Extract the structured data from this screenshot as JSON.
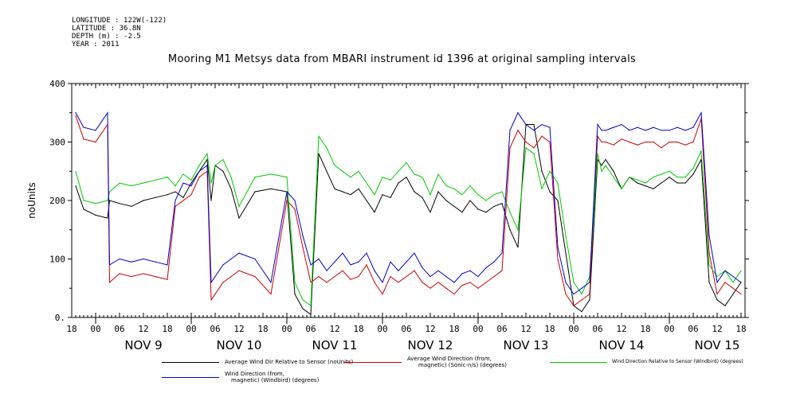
{
  "meta": {
    "longitude": "LONGITUDE : 122W(-122)",
    "latitude": "LATITUDE : 36.8N",
    "depth": "DEPTH (m) : -2.5",
    "year": "YEAR : 2011"
  },
  "chart_data": {
    "type": "line",
    "title": "Mooring M1 Metsys data from MBARI instrument id 1396 at original sampling intervals",
    "ylabel": "noUnits",
    "xlabel": "",
    "ylim": [
      0,
      400
    ],
    "yticks": [
      0,
      100,
      200,
      300,
      400
    ],
    "ytick_labels": [
      "0.",
      "100",
      "200",
      "300",
      "400"
    ],
    "xlim_hours": [
      -6,
      163
    ],
    "hour_ticks": [
      "00",
      "06",
      "12",
      "18"
    ],
    "day_labels": [
      "NOV  9",
      "NOV 10",
      "NOV 11",
      "NOV 12",
      "NOV 13",
      "NOV 14",
      "NOV 15"
    ],
    "grid": false,
    "series": [
      {
        "name": "Average Wind Dir Relative to Sensor (noUnits)",
        "color": "#000000",
        "x": [
          -5,
          -3,
          0,
          3,
          3.5,
          6,
          9,
          12,
          15,
          18,
          20,
          22,
          24,
          26,
          28,
          29,
          30,
          32,
          34,
          36,
          40,
          44,
          48,
          50,
          52,
          54,
          56,
          58,
          60,
          62,
          64,
          66,
          68,
          70,
          72,
          74,
          76,
          78,
          80,
          82,
          84,
          86,
          88,
          90,
          92,
          94,
          96,
          98,
          100,
          102,
          104,
          106,
          108,
          110,
          112,
          114,
          116,
          118,
          120,
          122,
          124,
          126,
          127,
          128,
          130,
          132,
          134,
          136,
          138,
          140,
          142,
          144,
          146,
          148,
          150,
          152,
          154,
          156,
          158,
          160,
          162
        ],
        "y": [
          225,
          185,
          175,
          170,
          200,
          195,
          190,
          200,
          205,
          210,
          215,
          205,
          230,
          250,
          270,
          200,
          260,
          250,
          220,
          170,
          215,
          220,
          215,
          40,
          15,
          5,
          280,
          250,
          220,
          215,
          210,
          220,
          200,
          180,
          210,
          205,
          230,
          240,
          215,
          205,
          180,
          215,
          200,
          190,
          180,
          200,
          185,
          180,
          190,
          195,
          150,
          120,
          330,
          330,
          250,
          215,
          200,
          110,
          20,
          10,
          30,
          270,
          260,
          270,
          250,
          220,
          240,
          230,
          225,
          220,
          230,
          240,
          230,
          230,
          245,
          270,
          60,
          30,
          20,
          40,
          60
        ]
      },
      {
        "name": "Average Wind Direction (from, magnetic) (Sonic-n/s) (degrees)",
        "color": "#cc0000",
        "x": [
          -5,
          -3,
          0,
          3,
          3.5,
          6,
          9,
          12,
          15,
          18,
          20,
          22,
          24,
          26,
          28,
          29,
          30,
          32,
          34,
          36,
          40,
          44,
          48,
          50,
          52,
          54,
          56,
          58,
          60,
          62,
          64,
          66,
          68,
          70,
          72,
          74,
          76,
          78,
          80,
          82,
          84,
          86,
          88,
          90,
          92,
          94,
          96,
          98,
          100,
          102,
          104,
          106,
          108,
          110,
          112,
          114,
          116,
          118,
          120,
          122,
          124,
          126,
          127,
          128,
          130,
          132,
          134,
          136,
          138,
          140,
          142,
          144,
          146,
          148,
          150,
          152,
          154,
          156,
          158,
          160,
          162
        ],
        "y": [
          345,
          305,
          300,
          330,
          60,
          75,
          70,
          75,
          70,
          65,
          190,
          200,
          210,
          240,
          250,
          30,
          40,
          60,
          70,
          80,
          70,
          40,
          200,
          185,
          120,
          60,
          70,
          60,
          70,
          80,
          65,
          70,
          90,
          60,
          40,
          70,
          60,
          70,
          80,
          60,
          50,
          60,
          50,
          40,
          55,
          60,
          50,
          60,
          70,
          80,
          290,
          320,
          300,
          290,
          310,
          300,
          100,
          40,
          20,
          30,
          40,
          310,
          300,
          300,
          295,
          305,
          300,
          295,
          300,
          300,
          290,
          300,
          300,
          295,
          300,
          340,
          110,
          40,
          60,
          50,
          40
        ]
      },
      {
        "name": "Wind Direction Relative to Sensor (Windbird) (degrees)",
        "color": "#00cc00",
        "x": [
          -5,
          -3,
          0,
          3,
          3.5,
          6,
          9,
          12,
          15,
          18,
          20,
          22,
          24,
          26,
          28,
          29,
          30,
          32,
          34,
          36,
          40,
          44,
          48,
          50,
          52,
          54,
          56,
          58,
          60,
          62,
          64,
          66,
          68,
          70,
          72,
          74,
          76,
          78,
          80,
          82,
          84,
          86,
          88,
          90,
          92,
          94,
          96,
          98,
          100,
          102,
          104,
          106,
          108,
          110,
          112,
          114,
          116,
          118,
          120,
          122,
          124,
          126,
          127,
          128,
          130,
          132,
          134,
          136,
          138,
          140,
          142,
          144,
          146,
          148,
          150,
          152,
          154,
          156,
          158,
          160,
          162
        ],
        "y": [
          250,
          200,
          195,
          200,
          215,
          230,
          225,
          230,
          235,
          240,
          225,
          245,
          235,
          260,
          280,
          230,
          260,
          270,
          240,
          190,
          240,
          245,
          240,
          60,
          30,
          20,
          310,
          290,
          260,
          250,
          240,
          250,
          230,
          210,
          240,
          235,
          250,
          265,
          245,
          240,
          210,
          245,
          225,
          220,
          210,
          225,
          210,
          200,
          210,
          215,
          180,
          150,
          290,
          280,
          220,
          250,
          230,
          140,
          60,
          40,
          70,
          280,
          250,
          260,
          240,
          220,
          240,
          235,
          230,
          240,
          245,
          250,
          240,
          240,
          255,
          285,
          90,
          70,
          80,
          60,
          80
        ]
      },
      {
        "name": "Wind Direction (from, magnetic) (Windbird) (degrees)",
        "color": "#0000cc",
        "x": [
          -5,
          -3,
          0,
          3,
          3.5,
          6,
          9,
          12,
          15,
          18,
          20,
          22,
          24,
          26,
          28,
          29,
          30,
          32,
          34,
          36,
          40,
          44,
          48,
          50,
          52,
          54,
          56,
          58,
          60,
          62,
          64,
          66,
          68,
          70,
          72,
          74,
          76,
          78,
          80,
          82,
          84,
          86,
          88,
          90,
          92,
          94,
          96,
          98,
          100,
          102,
          104,
          106,
          108,
          110,
          112,
          114,
          116,
          118,
          120,
          122,
          124,
          126,
          127,
          128,
          130,
          132,
          134,
          136,
          138,
          140,
          142,
          144,
          146,
          148,
          150,
          152,
          154,
          156,
          158,
          160,
          162
        ],
        "y": [
          350,
          325,
          320,
          350,
          90,
          100,
          95,
          100,
          95,
          90,
          200,
          230,
          225,
          250,
          260,
          60,
          70,
          90,
          100,
          110,
          100,
          60,
          215,
          200,
          140,
          90,
          100,
          80,
          95,
          110,
          90,
          95,
          110,
          80,
          60,
          95,
          80,
          95,
          110,
          85,
          70,
          80,
          70,
          60,
          75,
          80,
          70,
          85,
          95,
          110,
          320,
          350,
          330,
          320,
          330,
          325,
          120,
          60,
          40,
          50,
          60,
          330,
          320,
          320,
          325,
          330,
          320,
          325,
          320,
          325,
          320,
          320,
          325,
          320,
          325,
          350,
          140,
          60,
          80,
          70,
          60
        ]
      }
    ]
  },
  "legend": [
    {
      "line1": "Average Wind Dir Relative to Sensor (noUnits)",
      "line2": ""
    },
    {
      "line1": "Average Wind Direction (from,",
      "line2": "magnetic) (Sonic-n/s) (degrees)"
    },
    {
      "line1": "Wind Direction Relative to Sensor (Windbird) (degrees)",
      "line2": ""
    },
    {
      "line1": "Wind Direction (from,",
      "line2": "magnetic) (Windbird) (degrees)"
    }
  ]
}
